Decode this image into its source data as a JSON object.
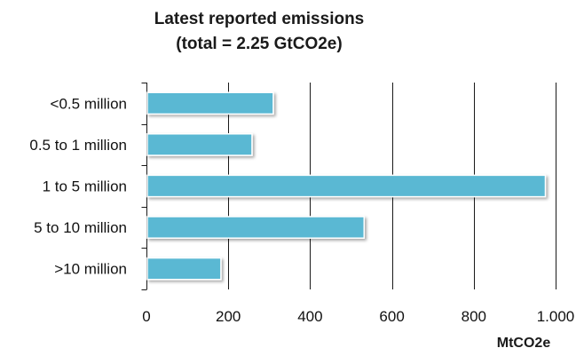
{
  "chart_data": {
    "type": "bar",
    "orientation": "horizontal",
    "title_lines": [
      "Latest reported emissions",
      "(total = 2.25 GtCO2e)"
    ],
    "categories": [
      "<0.5 million",
      "0.5 to 1 million",
      "1 to 5 million",
      "5 to 10 million",
      ">10 million"
    ],
    "values": [
      310,
      258,
      975,
      532,
      182
    ],
    "xlabel": "MtCO2e",
    "ylabel": "",
    "xlim": [
      0,
      1000
    ],
    "xticks": [
      0,
      200,
      400,
      600,
      800,
      1000
    ],
    "xtick_labels": [
      "0",
      "200",
      "400",
      "600",
      "800",
      "1.000"
    ],
    "grid": "vertical",
    "legend": "none",
    "bar_color": "#5ab8d3",
    "bar_edge_color": "#ffffff"
  }
}
